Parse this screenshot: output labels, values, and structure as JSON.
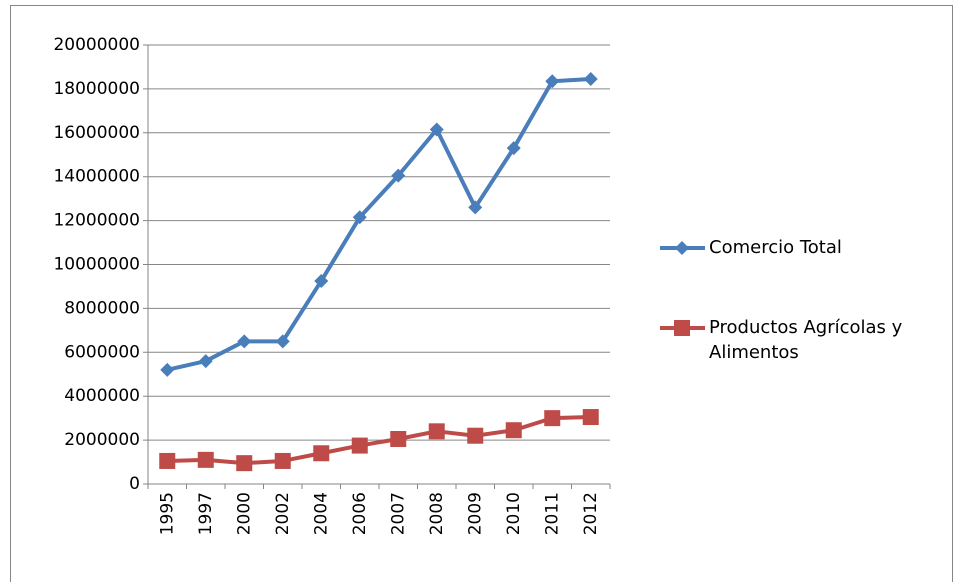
{
  "chart_data": {
    "type": "line",
    "categories": [
      "1995",
      "1997",
      "2000",
      "2002",
      "2004",
      "2006",
      "2007",
      "2008",
      "2009",
      "2010",
      "2011",
      "2012"
    ],
    "series": [
      {
        "name": "Comercio Total",
        "color": "#4a7ebb",
        "marker": "diamond",
        "values": [
          5200000,
          5600000,
          6500000,
          6500000,
          9250000,
          12150000,
          14050000,
          16150000,
          12600000,
          15300000,
          18350000,
          18450000
        ]
      },
      {
        "name": "Productos Agrícolas y Alimentos",
        "color": "#be4b48",
        "marker": "square",
        "values": [
          1050000,
          1100000,
          950000,
          1050000,
          1400000,
          1750000,
          2050000,
          2400000,
          2200000,
          2450000,
          3000000,
          3050000
        ]
      }
    ],
    "ylim": [
      0,
      20000000
    ],
    "yticks": [
      0,
      2000000,
      4000000,
      6000000,
      8000000,
      10000000,
      12000000,
      14000000,
      16000000,
      18000000,
      20000000
    ],
    "grid": true,
    "legend": "right"
  }
}
